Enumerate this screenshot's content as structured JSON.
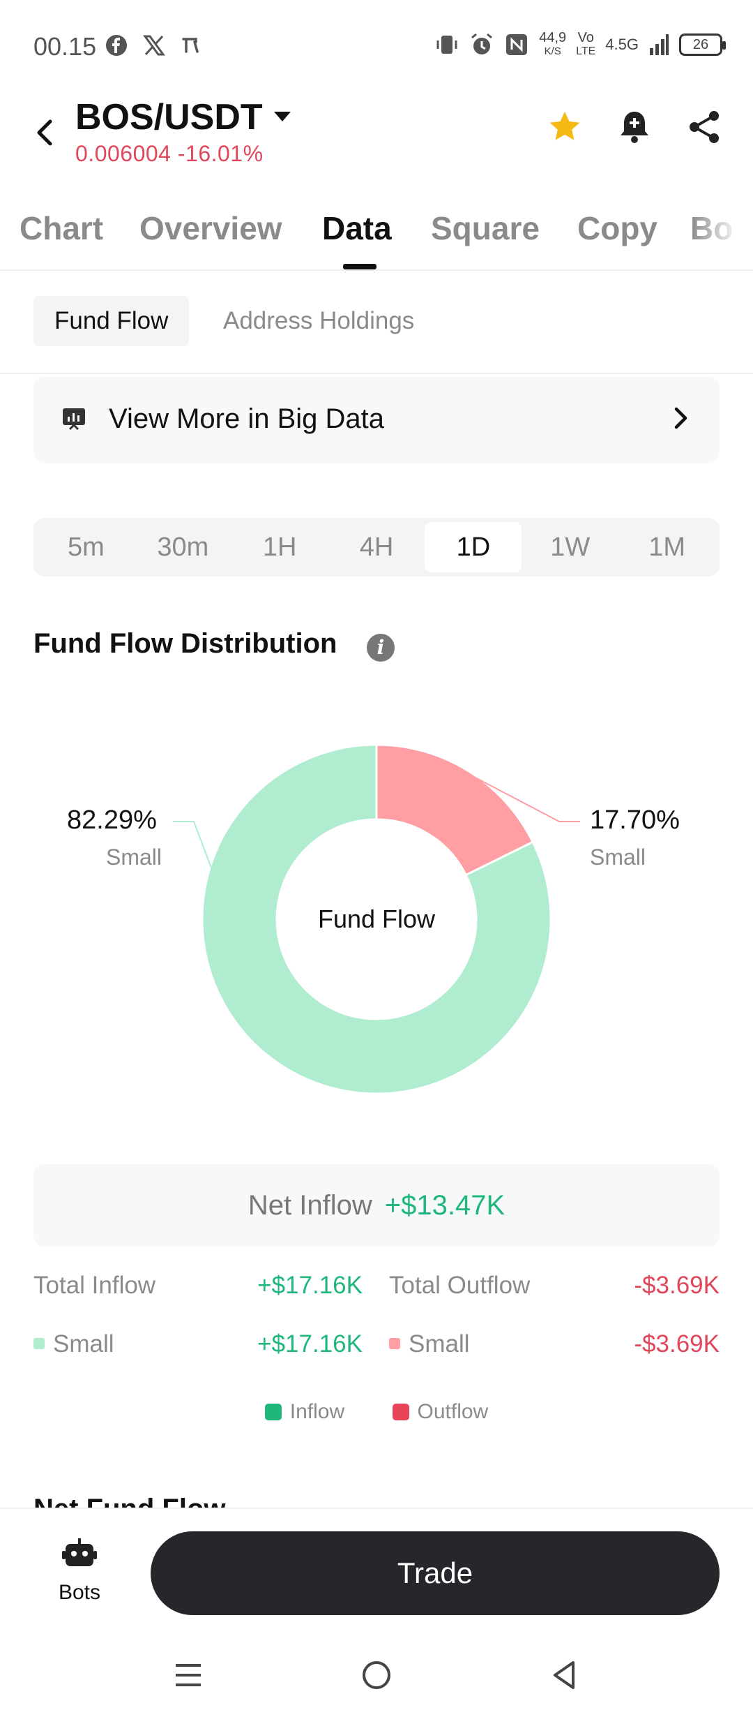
{
  "status_bar": {
    "time": "00.15",
    "left_icons": [
      "facebook-icon",
      "x-icon",
      "app-icon"
    ],
    "net_speed_value": "44,9",
    "net_speed_unit": "K/S",
    "volte_top": "Vo",
    "volte_bottom": "LTE",
    "network": "4.5G",
    "battery": "26"
  },
  "header": {
    "pair": "BOS/USDT",
    "price_change": "0.006004  -16.01%",
    "icons": [
      "back-icon",
      "star-icon",
      "bell-icon",
      "share-icon"
    ],
    "star_color": "#f5b916"
  },
  "tabs": [
    {
      "label": "Chart"
    },
    {
      "label": "Overview"
    },
    {
      "label": "Data"
    },
    {
      "label": "Square"
    },
    {
      "label": "Copy"
    },
    {
      "label": "Bo"
    }
  ],
  "active_tab": "Data",
  "subtabs": [
    {
      "label": "Fund Flow"
    },
    {
      "label": "Address Holdings"
    }
  ],
  "banner": {
    "text": "View More in Big Data"
  },
  "timeframes": [
    "5m",
    "30m",
    "1H",
    "4H",
    "1D",
    "1W",
    "1M"
  ],
  "active_timeframe": "1D",
  "distribution": {
    "title": "Fund Flow Distribution",
    "center_label": "Fund Flow"
  },
  "chart_data": {
    "type": "pie",
    "title": "Fund Flow Distribution",
    "slices": [
      {
        "label": "Small",
        "group": "Inflow",
        "value": 82.29,
        "display": "82.29%",
        "color": "#b0ecd0"
      },
      {
        "label": "Small",
        "group": "Outflow",
        "value": 17.7,
        "display": "17.70%",
        "color": "#ff9ea3"
      }
    ],
    "center_text": "Fund Flow",
    "legend": [
      "Inflow",
      "Outflow"
    ]
  },
  "net_inflow": {
    "label": "Net Inflow",
    "value": "+$13.47K"
  },
  "totals": {
    "inflow_label": "Total Inflow",
    "inflow_value": "+$17.16K",
    "outflow_label": "Total Outflow",
    "outflow_value": "-$3.69K",
    "inflow_small_label": "Small",
    "inflow_small_value": "+$17.16K",
    "outflow_small_label": "Small",
    "outflow_small_value": "-$3.69K"
  },
  "legend": {
    "inflow": "Inflow",
    "outflow": "Outflow",
    "inflow_color": "#20b77c",
    "outflow_color": "#e8445a"
  },
  "peek_title": "Net Fund Flow",
  "bottom": {
    "bots_label": "Bots",
    "trade_label": "Trade"
  },
  "nav": [
    "menu-icon",
    "home-icon",
    "back-nav-icon"
  ]
}
